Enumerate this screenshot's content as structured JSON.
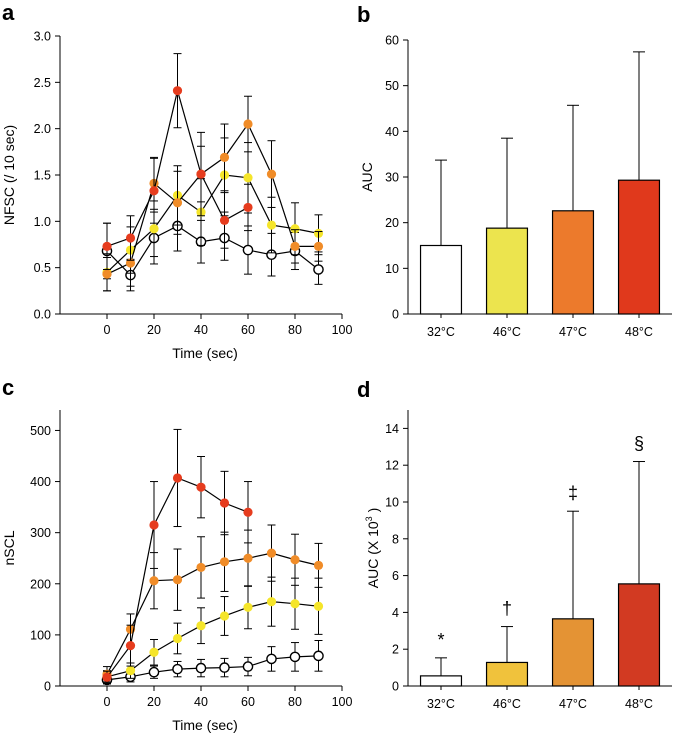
{
  "chart_data": [
    {
      "panel": "a",
      "type": "line",
      "xlabel": "Time (sec)",
      "ylabel": "NFSC (/ 10 sec)",
      "xlim": [
        -20,
        100
      ],
      "ylim": [
        0,
        3.0
      ],
      "xticks": [
        0,
        20,
        40,
        60,
        80,
        100
      ],
      "yticks": [
        0.0,
        0.5,
        1.0,
        1.5,
        2.0,
        2.5,
        3.0
      ],
      "ytick_labels": [
        "0.0",
        "0.5",
        "1.0",
        "1.5",
        "2.0",
        "2.5",
        "3.0"
      ],
      "x": [
        0,
        10,
        20,
        30,
        40,
        50,
        60,
        70,
        80,
        90
      ],
      "series": [
        {
          "name": "32°C",
          "color": "#ffffff",
          "values": [
            0.68,
            0.42,
            0.82,
            0.95,
            0.78,
            0.82,
            0.69,
            0.64,
            0.68,
            0.48
          ],
          "errors": [
            0.3,
            0.17,
            0.28,
            0.27,
            0.23,
            0.24,
            0.26,
            0.23,
            0.2,
            0.16
          ]
        },
        {
          "name": "46°C",
          "color": "#f5e52a",
          "values": [
            0.45,
            0.69,
            0.92,
            1.28,
            1.1,
            1.5,
            1.47,
            0.96,
            0.92,
            0.87
          ],
          "errors": [
            0.2,
            0.25,
            0.3,
            0.32,
            0.36,
            0.4,
            0.38,
            0.3,
            0.28,
            0.2
          ]
        },
        {
          "name": "47°C",
          "color": "#f08c28",
          "values": [
            0.43,
            0.55,
            1.41,
            1.2,
            1.51,
            1.69,
            2.05,
            1.51,
            0.73,
            0.73
          ],
          "errors": [
            0.18,
            0.25,
            0.28,
            0.34,
            0.45,
            0.36,
            0.3,
            0.36,
            0.18,
            0.16
          ]
        },
        {
          "name": "48°C",
          "color": "#e63c1e",
          "values": [
            0.73,
            0.82,
            1.33,
            2.41,
            1.51,
            1.01,
            1.15,
            null,
            null,
            null
          ],
          "errors": [
            0.25,
            0.24,
            0.35,
            0.4,
            0.3,
            0.3,
            0.25,
            null,
            null,
            null
          ]
        }
      ]
    },
    {
      "panel": "b",
      "type": "bar",
      "ylabel": "AUC",
      "ylim": [
        0,
        60
      ],
      "yticks": [
        0,
        10,
        20,
        30,
        40,
        50,
        60
      ],
      "categories": [
        "32°C",
        "46°C",
        "47°C",
        "48°C"
      ],
      "values": [
        15.0,
        18.8,
        22.6,
        29.3
      ],
      "errors": [
        18.7,
        19.7,
        23.1,
        28.1
      ],
      "colors": [
        "#ffffff",
        "#ece44e",
        "#ec7a2c",
        "#e0391c"
      ]
    },
    {
      "panel": "c",
      "type": "line",
      "xlabel": "Time (sec)",
      "ylabel": "nSCL",
      "xlim": [
        -20,
        100
      ],
      "ylim": [
        0,
        540
      ],
      "xticks": [
        0,
        20,
        40,
        60,
        80,
        100
      ],
      "yticks": [
        0,
        100,
        200,
        300,
        400,
        500
      ],
      "x": [
        0,
        10,
        20,
        30,
        40,
        50,
        60,
        70,
        80,
        90
      ],
      "series": [
        {
          "name": "32°C",
          "color": "#ffffff",
          "values": [
            12,
            18,
            27,
            33,
            35,
            36,
            38,
            53,
            57,
            59
          ],
          "errors": [
            8,
            10,
            12,
            15,
            17,
            18,
            18,
            24,
            28,
            30
          ]
        },
        {
          "name": "46°C",
          "color": "#f5e52a",
          "values": [
            18,
            30,
            66,
            93,
            118,
            137,
            154,
            165,
            161,
            156
          ],
          "errors": [
            12,
            15,
            25,
            30,
            35,
            38,
            42,
            48,
            50,
            55
          ]
        },
        {
          "name": "47°C",
          "color": "#f08c28",
          "values": [
            23,
            111,
            206,
            208,
            232,
            243,
            250,
            260,
            247,
            236
          ],
          "errors": [
            15,
            30,
            55,
            60,
            60,
            58,
            55,
            55,
            50,
            43
          ]
        },
        {
          "name": "48°C",
          "color": "#e63c1e",
          "values": [
            17,
            79,
            315,
            407,
            389,
            358,
            340,
            null,
            null,
            null
          ],
          "errors": [
            12,
            40,
            85,
            95,
            60,
            62,
            60,
            null,
            null,
            null
          ]
        }
      ]
    },
    {
      "panel": "d",
      "type": "bar",
      "ylabel": "AUC (X 10",
      "ylabel_sup": "3",
      "ylabel_end": ")",
      "ylim": [
        0,
        15
      ],
      "yticks": [
        0,
        2,
        4,
        6,
        8,
        10,
        12,
        14
      ],
      "categories": [
        "32°C",
        "46°C",
        "47°C",
        "48°C"
      ],
      "values": [
        0.55,
        1.28,
        3.65,
        5.55
      ],
      "errors": [
        0.98,
        1.95,
        5.85,
        6.65
      ],
      "colors": [
        "#ffffff",
        "#f0c23c",
        "#e49334",
        "#d23a22"
      ],
      "annotations": [
        "*",
        "†",
        "‡",
        "§"
      ]
    }
  ]
}
